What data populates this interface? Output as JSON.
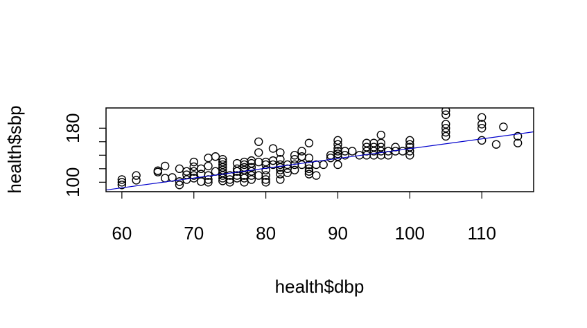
{
  "chart_data": {
    "type": "scatter",
    "title": "",
    "xlabel": "health$dbp",
    "ylabel": "health$sbp",
    "xlim": [
      57.8,
      117.2
    ],
    "ylim": [
      86,
      210
    ],
    "xticks": [
      60,
      70,
      80,
      90,
      100,
      110
    ],
    "yticks": [
      100,
      180
    ],
    "colors": {
      "points": "#000000",
      "fit_line": "#0000cc",
      "frame": "#000000",
      "background": "#ffffff"
    },
    "fit_line": {
      "slope": 1.45,
      "intercept": 4.7,
      "color": "#0000cc"
    },
    "points": [
      [
        60,
        96
      ],
      [
        60,
        100
      ],
      [
        60,
        104
      ],
      [
        62,
        103
      ],
      [
        62,
        110
      ],
      [
        65,
        115
      ],
      [
        65,
        117
      ],
      [
        66,
        106
      ],
      [
        66,
        124
      ],
      [
        67,
        107
      ],
      [
        68,
        96
      ],
      [
        68,
        101
      ],
      [
        68,
        120
      ],
      [
        69,
        104
      ],
      [
        69,
        111
      ],
      [
        69,
        116
      ],
      [
        70,
        106
      ],
      [
        70,
        110
      ],
      [
        70,
        116
      ],
      [
        70,
        123
      ],
      [
        70,
        130
      ],
      [
        71,
        101
      ],
      [
        71,
        112
      ],
      [
        71,
        120
      ],
      [
        72,
        100
      ],
      [
        72,
        104
      ],
      [
        72,
        110
      ],
      [
        72,
        124
      ],
      [
        72,
        136
      ],
      [
        73,
        116
      ],
      [
        73,
        138
      ],
      [
        74,
        102
      ],
      [
        74,
        106
      ],
      [
        74,
        110
      ],
      [
        74,
        114
      ],
      [
        74,
        118
      ],
      [
        74,
        122
      ],
      [
        74,
        126
      ],
      [
        74,
        130
      ],
      [
        74,
        134
      ],
      [
        75,
        100
      ],
      [
        75,
        104
      ],
      [
        75,
        110
      ],
      [
        76,
        106
      ],
      [
        76,
        110
      ],
      [
        76,
        116
      ],
      [
        76,
        120
      ],
      [
        76,
        128
      ],
      [
        77,
        100
      ],
      [
        77,
        106
      ],
      [
        77,
        110
      ],
      [
        77,
        118
      ],
      [
        77,
        122
      ],
      [
        77,
        126
      ],
      [
        77,
        130
      ],
      [
        78,
        104
      ],
      [
        78,
        110
      ],
      [
        78,
        116
      ],
      [
        78,
        122
      ],
      [
        78,
        128
      ],
      [
        78,
        132
      ],
      [
        79,
        110
      ],
      [
        79,
        130
      ],
      [
        79,
        144
      ],
      [
        79,
        160
      ],
      [
        80,
        100
      ],
      [
        80,
        104
      ],
      [
        80,
        110
      ],
      [
        80,
        118
      ],
      [
        80,
        126
      ],
      [
        80,
        130
      ],
      [
        81,
        126
      ],
      [
        81,
        132
      ],
      [
        81,
        150
      ],
      [
        82,
        104
      ],
      [
        82,
        112
      ],
      [
        82,
        118
      ],
      [
        82,
        122
      ],
      [
        82,
        126
      ],
      [
        82,
        134
      ],
      [
        82,
        144
      ],
      [
        83,
        114
      ],
      [
        83,
        120
      ],
      [
        83,
        126
      ],
      [
        84,
        118
      ],
      [
        84,
        126
      ],
      [
        84,
        134
      ],
      [
        84,
        140
      ],
      [
        85,
        126
      ],
      [
        85,
        138
      ],
      [
        85,
        146
      ],
      [
        86,
        112
      ],
      [
        86,
        116
      ],
      [
        86,
        120
      ],
      [
        86,
        126
      ],
      [
        86,
        136
      ],
      [
        86,
        158
      ],
      [
        87,
        110
      ],
      [
        87,
        126
      ],
      [
        88,
        126
      ],
      [
        89,
        136
      ],
      [
        89,
        140
      ],
      [
        90,
        126
      ],
      [
        90,
        138
      ],
      [
        90,
        142
      ],
      [
        90,
        146
      ],
      [
        90,
        150
      ],
      [
        90,
        156
      ],
      [
        90,
        162
      ],
      [
        91,
        140
      ],
      [
        91,
        146
      ],
      [
        92,
        146
      ],
      [
        93,
        140
      ],
      [
        94,
        140
      ],
      [
        94,
        146
      ],
      [
        94,
        152
      ],
      [
        94,
        158
      ],
      [
        95,
        140
      ],
      [
        95,
        146
      ],
      [
        95,
        152
      ],
      [
        95,
        158
      ],
      [
        96,
        140
      ],
      [
        96,
        146
      ],
      [
        96,
        152
      ],
      [
        96,
        158
      ],
      [
        96,
        170
      ],
      [
        97,
        140
      ],
      [
        97,
        146
      ],
      [
        98,
        146
      ],
      [
        98,
        152
      ],
      [
        99,
        146
      ],
      [
        100,
        140
      ],
      [
        100,
        146
      ],
      [
        100,
        152
      ],
      [
        100,
        156
      ],
      [
        100,
        162
      ],
      [
        105,
        168
      ],
      [
        105,
        174
      ],
      [
        105,
        180
      ],
      [
        105,
        186
      ],
      [
        105,
        200
      ],
      [
        105,
        206
      ],
      [
        110,
        162
      ],
      [
        110,
        180
      ],
      [
        110,
        186
      ],
      [
        110,
        196
      ],
      [
        112,
        156
      ],
      [
        113,
        182
      ],
      [
        115,
        158
      ],
      [
        115,
        168
      ]
    ]
  }
}
